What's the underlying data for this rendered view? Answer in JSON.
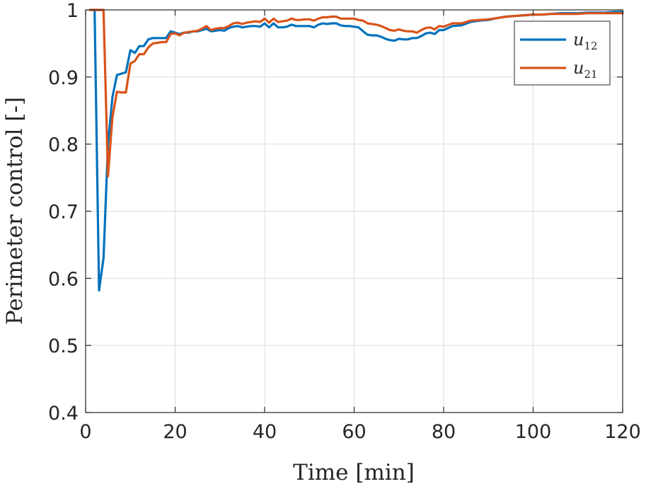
{
  "chart_data": {
    "type": "line",
    "xlabel": "Time [min]",
    "ylabel": "Perimeter control [-]",
    "xlim": [
      0,
      120
    ],
    "ylim": [
      0.4,
      1
    ],
    "xticks": [
      0,
      20,
      40,
      60,
      80,
      100,
      120
    ],
    "xtick_labels": [
      "0",
      "20",
      "40",
      "60",
      "80",
      "100",
      "120"
    ],
    "yticks": [
      0.4,
      0.5,
      0.6,
      0.7,
      0.8,
      0.9,
      1
    ],
    "ytick_labels": [
      "0.4",
      "0.5",
      "0.6",
      "0.7",
      "0.8",
      "0.9",
      "1"
    ],
    "grid": true,
    "legend_position": "top-right",
    "series": [
      {
        "name": "u12",
        "name_base": "u",
        "name_sub": "12",
        "color": "#0072BD",
        "x": [
          1,
          2,
          3,
          4,
          5,
          6,
          7,
          8,
          9,
          10,
          11,
          12,
          13,
          14,
          15,
          16,
          17,
          18,
          19,
          20,
          21,
          22,
          23,
          24,
          25,
          26,
          27,
          28,
          29,
          30,
          31,
          32,
          33,
          34,
          35,
          36,
          37,
          38,
          39,
          40,
          41,
          42,
          43,
          44,
          45,
          46,
          47,
          48,
          49,
          50,
          51,
          52,
          53,
          54,
          55,
          56,
          57,
          58,
          59,
          60,
          61,
          62,
          63,
          64,
          65,
          66,
          67,
          68,
          69,
          70,
          71,
          72,
          73,
          74,
          75,
          76,
          77,
          78,
          79,
          80,
          82,
          84,
          86,
          88,
          90,
          92,
          94,
          96,
          98,
          100,
          102,
          104,
          106,
          108,
          110,
          112,
          114,
          116,
          118,
          120
        ],
        "y": [
          1,
          1,
          0.582,
          0.63,
          0.8,
          0.87,
          0.903,
          0.905,
          0.907,
          0.94,
          0.936,
          0.946,
          0.946,
          0.956,
          0.958,
          0.958,
          0.958,
          0.958,
          0.968,
          0.966,
          0.964,
          0.966,
          0.966,
          0.968,
          0.968,
          0.97,
          0.972,
          0.968,
          0.969,
          0.97,
          0.969,
          0.973,
          0.975,
          0.976,
          0.974,
          0.975,
          0.976,
          0.976,
          0.975,
          0.98,
          0.974,
          0.98,
          0.974,
          0.974,
          0.975,
          0.978,
          0.976,
          0.976,
          0.976,
          0.976,
          0.974,
          0.978,
          0.98,
          0.979,
          0.98,
          0.98,
          0.977,
          0.976,
          0.976,
          0.975,
          0.974,
          0.968,
          0.963,
          0.962,
          0.962,
          0.96,
          0.957,
          0.955,
          0.954,
          0.957,
          0.956,
          0.956,
          0.958,
          0.958,
          0.961,
          0.965,
          0.966,
          0.964,
          0.97,
          0.97,
          0.976,
          0.977,
          0.982,
          0.984,
          0.985,
          0.988,
          0.99,
          0.991,
          0.992,
          0.993,
          0.993,
          0.994,
          0.995,
          0.995,
          0.995,
          0.996,
          0.996,
          0.996,
          0.997,
          0.997
        ]
      },
      {
        "name": "u21",
        "name_base": "u",
        "name_sub": "21",
        "color": "#D95319",
        "x": [
          1,
          2,
          3,
          4,
          5,
          6,
          7,
          8,
          9,
          10,
          11,
          12,
          13,
          14,
          15,
          16,
          17,
          18,
          19,
          20,
          21,
          22,
          23,
          24,
          25,
          26,
          27,
          28,
          29,
          30,
          31,
          32,
          33,
          34,
          35,
          36,
          37,
          38,
          39,
          40,
          41,
          42,
          43,
          44,
          45,
          46,
          47,
          48,
          49,
          50,
          51,
          52,
          53,
          54,
          55,
          56,
          57,
          58,
          59,
          60,
          61,
          62,
          63,
          64,
          65,
          66,
          67,
          68,
          69,
          70,
          71,
          72,
          73,
          74,
          75,
          76,
          77,
          78,
          79,
          80,
          82,
          84,
          86,
          88,
          90,
          92,
          94,
          96,
          98,
          100,
          102,
          104,
          106,
          108,
          110,
          112,
          114,
          116,
          118,
          120
        ],
        "y": [
          1,
          1,
          1,
          1,
          0.752,
          0.84,
          0.878,
          0.877,
          0.877,
          0.92,
          0.924,
          0.934,
          0.934,
          0.944,
          0.95,
          0.951,
          0.952,
          0.952,
          0.964,
          0.965,
          0.962,
          0.966,
          0.967,
          0.968,
          0.969,
          0.972,
          0.976,
          0.97,
          0.972,
          0.973,
          0.973,
          0.976,
          0.98,
          0.981,
          0.979,
          0.981,
          0.982,
          0.983,
          0.982,
          0.987,
          0.981,
          0.987,
          0.982,
          0.983,
          0.984,
          0.987,
          0.985,
          0.985,
          0.986,
          0.986,
          0.984,
          0.987,
          0.989,
          0.989,
          0.99,
          0.99,
          0.987,
          0.987,
          0.987,
          0.987,
          0.985,
          0.984,
          0.98,
          0.979,
          0.978,
          0.976,
          0.973,
          0.97,
          0.969,
          0.971,
          0.969,
          0.968,
          0.968,
          0.966,
          0.97,
          0.973,
          0.974,
          0.971,
          0.976,
          0.975,
          0.98,
          0.98,
          0.984,
          0.985,
          0.986,
          0.988,
          0.99,
          0.991,
          0.992,
          0.993,
          0.993,
          0.994,
          0.994,
          0.994,
          0.994,
          0.995,
          0.995,
          0.995,
          0.995,
          0.995
        ]
      }
    ]
  }
}
